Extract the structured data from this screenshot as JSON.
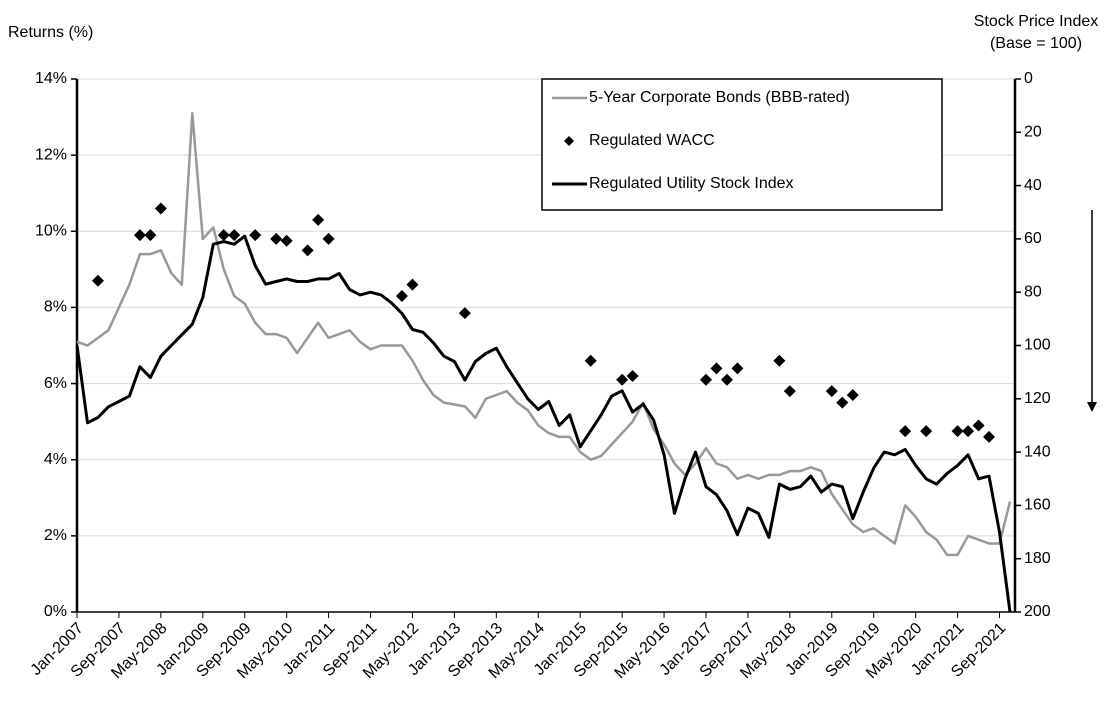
{
  "chart_data": {
    "type": "line",
    "ylabel": "Returns (%)",
    "y2label": [
      "Stock Price Index",
      "(Base = 100)"
    ],
    "categories": [
      "Jan-2007",
      null,
      null,
      null,
      "Sep-2007",
      null,
      null,
      null,
      "May-2008",
      null,
      null,
      null,
      "Jan-2009",
      null,
      null,
      null,
      "Sep-2009",
      null,
      null,
      null,
      "May-2010",
      null,
      null,
      null,
      "Jan-2011",
      null,
      null,
      null,
      "Sep-2011",
      null,
      null,
      null,
      "May-2012",
      null,
      null,
      null,
      "Jan-2013",
      null,
      null,
      null,
      "Sep-2013",
      null,
      null,
      null,
      "May-2014",
      null,
      null,
      null,
      "Jan-2015",
      null,
      null,
      null,
      "Sep-2015",
      null,
      null,
      null,
      "May-2016",
      null,
      null,
      null,
      "Jan-2017",
      null,
      null,
      null,
      "Sep-2017",
      null,
      null,
      null,
      "May-2018",
      null,
      null,
      null,
      "Jan-2019",
      null,
      null,
      null,
      "Sep-2019",
      null,
      null,
      null,
      "May-2020",
      null,
      null,
      null,
      "Jan-2021",
      null,
      null,
      null,
      "Sep-2021",
      null
    ],
    "ylim": [
      0,
      14
    ],
    "yticks": [
      {
        "value": 0,
        "label": "0%"
      },
      {
        "value": 2,
        "label": "2%"
      },
      {
        "value": 4,
        "label": "4%"
      },
      {
        "value": 6,
        "label": "6%"
      },
      {
        "value": 8,
        "label": "8%"
      },
      {
        "value": 10,
        "label": "10%"
      },
      {
        "value": 12,
        "label": "12%"
      },
      {
        "value": 14,
        "label": "14%"
      }
    ],
    "y2lim": [
      200,
      0
    ],
    "y2ticks": [
      0,
      20,
      40,
      60,
      80,
      100,
      120,
      140,
      160,
      180,
      200
    ],
    "grid": true,
    "legend": "upper right",
    "series": [
      {
        "name": "5-Year Corporate Bonds (BBB-rated)",
        "color": "#999999",
        "values": [
          7.1,
          7.0,
          7.2,
          7.4,
          8.0,
          8.6,
          9.4,
          9.4,
          9.5,
          8.9,
          8.6,
          13.1,
          9.8,
          10.1,
          9.0,
          8.3,
          8.1,
          7.6,
          7.3,
          7.3,
          7.2,
          6.8,
          7.2,
          7.6,
          7.2,
          7.3,
          7.4,
          7.1,
          6.9,
          7.0,
          7.0,
          7.0,
          6.6,
          6.1,
          5.7,
          5.5,
          5.45,
          5.4,
          5.1,
          5.6,
          5.7,
          5.8,
          5.5,
          5.3,
          4.9,
          4.7,
          4.6,
          4.6,
          4.2,
          4.0,
          4.1,
          4.4,
          4.7,
          5.0,
          5.5,
          4.8,
          4.4,
          3.9,
          3.6,
          3.9,
          4.3,
          3.9,
          3.8,
          3.5,
          3.6,
          3.5,
          3.6,
          3.6,
          3.7,
          3.7,
          3.8,
          3.7,
          3.1,
          2.7,
          2.3,
          2.1,
          2.2,
          2.0,
          1.8,
          2.8,
          2.5,
          2.1,
          1.9,
          1.5,
          1.5,
          2.0,
          1.9,
          1.8,
          1.8,
          2.9
        ]
      },
      {
        "name": "Regulated WACC",
        "color": "#000000",
        "marker": "diamond",
        "values": [
          null,
          null,
          8.7,
          null,
          null,
          null,
          9.9,
          9.9,
          10.6,
          null,
          null,
          null,
          null,
          null,
          9.9,
          9.9,
          null,
          9.9,
          null,
          9.8,
          9.75,
          null,
          9.5,
          10.3,
          9.8,
          null,
          null,
          null,
          null,
          null,
          null,
          8.3,
          8.6,
          null,
          null,
          null,
          null,
          7.85,
          null,
          null,
          null,
          null,
          null,
          null,
          null,
          null,
          null,
          null,
          null,
          6.6,
          null,
          null,
          6.1,
          6.2,
          null,
          null,
          null,
          null,
          null,
          null,
          6.1,
          6.4,
          6.1,
          6.4,
          null,
          null,
          null,
          6.6,
          5.8,
          null,
          null,
          null,
          5.8,
          5.5,
          5.7,
          null,
          null,
          null,
          null,
          4.75,
          null,
          4.75,
          null,
          null,
          4.75,
          4.75,
          4.9,
          4.6,
          null,
          null
        ]
      },
      {
        "name": "Regulated Utility Stock Index",
        "color": "#000000",
        "axis": "y2",
        "values": [
          100,
          129,
          127,
          123,
          121,
          119,
          108,
          112,
          104,
          100,
          96,
          92,
          82,
          62,
          61,
          62,
          59,
          70,
          77,
          76,
          75,
          76,
          76,
          75,
          75,
          73,
          79,
          81,
          80,
          81,
          84,
          88,
          94,
          95,
          99,
          104,
          106,
          113,
          106,
          103,
          101,
          108,
          114,
          120,
          124,
          121,
          130,
          126,
          138,
          132,
          126,
          119,
          117,
          125,
          122,
          128,
          141,
          163,
          150,
          140,
          153,
          156,
          162,
          171,
          161,
          163,
          172,
          152,
          154,
          153,
          149,
          155,
          152,
          153,
          165,
          155,
          146,
          140,
          141,
          139,
          145,
          150,
          152,
          148,
          145,
          141,
          150,
          149,
          170,
          200
        ]
      }
    ]
  }
}
